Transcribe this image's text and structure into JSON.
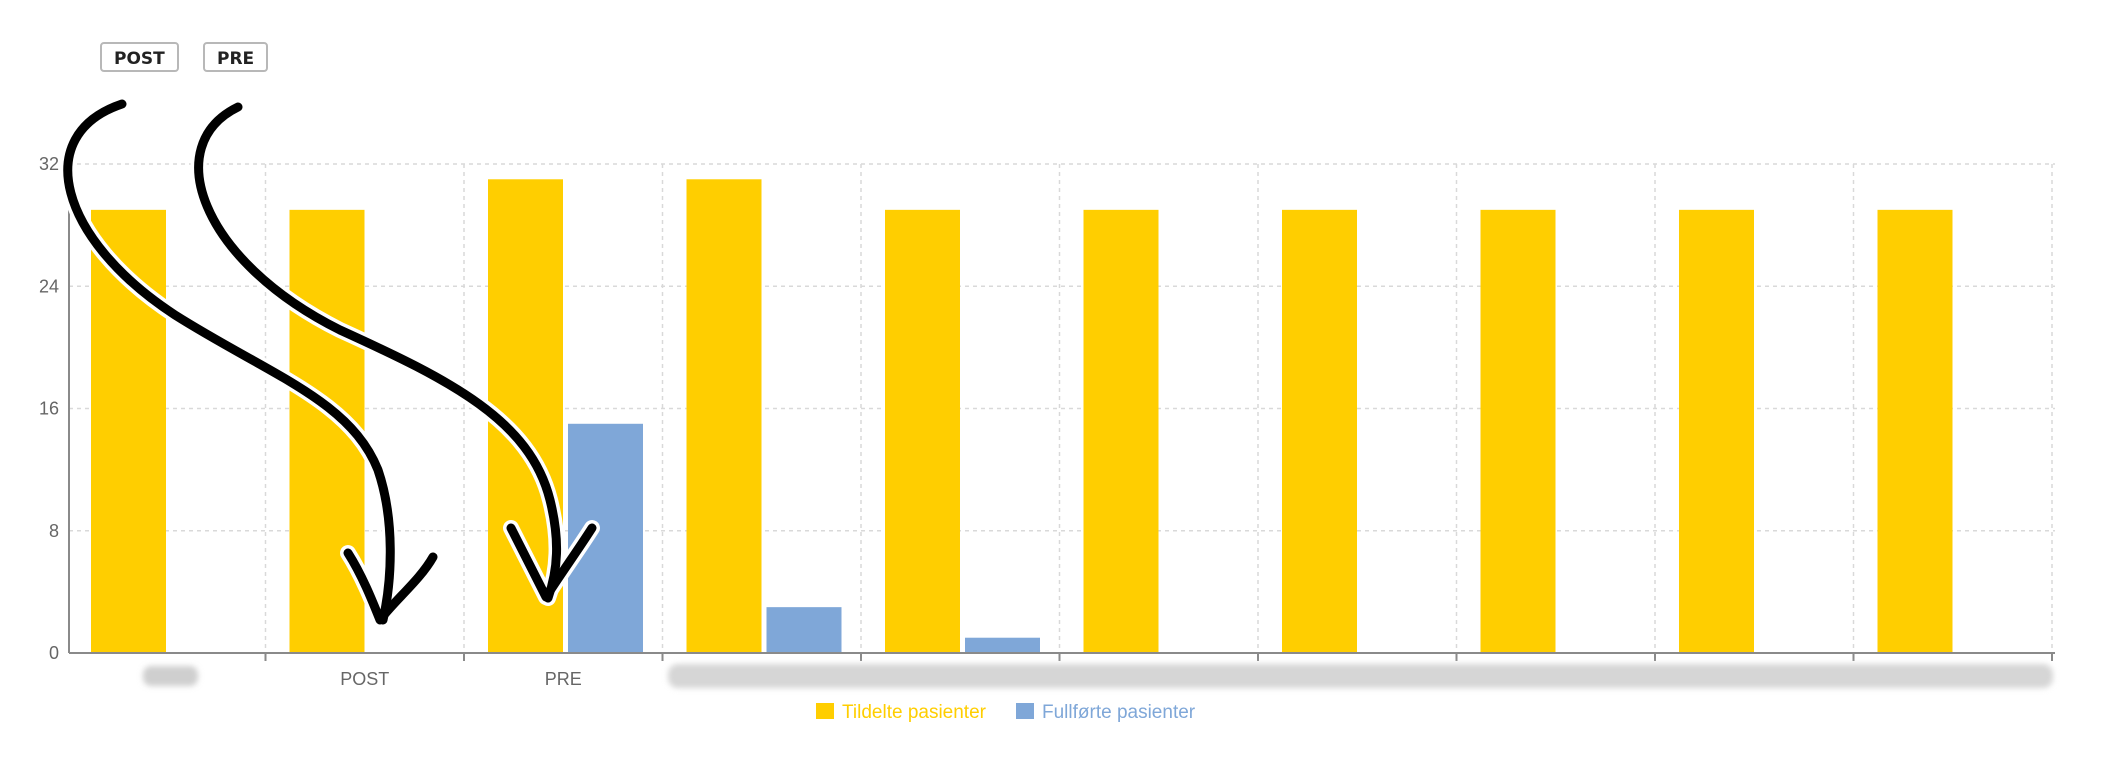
{
  "annotations": {
    "post_tag": "POST",
    "pre_tag": "PRE"
  },
  "colors": {
    "series_assigned": "#FFCE00",
    "series_completed": "#7FA7D8",
    "grid": "#d9d9d9",
    "axis": "#8a8a8a",
    "arrow": "#000000"
  },
  "chart_data": {
    "type": "bar",
    "categories": [
      "",
      "POST",
      "PRE",
      "",
      "",
      "",
      "",
      "",
      "",
      ""
    ],
    "series": [
      {
        "name": "Tildelte pasienter",
        "color": "#FFCE00",
        "values": [
          29,
          29,
          31,
          31,
          29,
          29,
          29,
          29,
          29,
          29
        ]
      },
      {
        "name": "Fullførte pasienter",
        "color": "#7FA7D8",
        "values": [
          0,
          0,
          15,
          3,
          1,
          0,
          0,
          0,
          0,
          0
        ]
      }
    ],
    "ylim": [
      0,
      32
    ],
    "yticks": [
      "0",
      "8",
      "16",
      "24",
      "32"
    ],
    "grid": true,
    "legend": "bottom-center",
    "xlabel": "",
    "ylabel": "",
    "title": ""
  }
}
